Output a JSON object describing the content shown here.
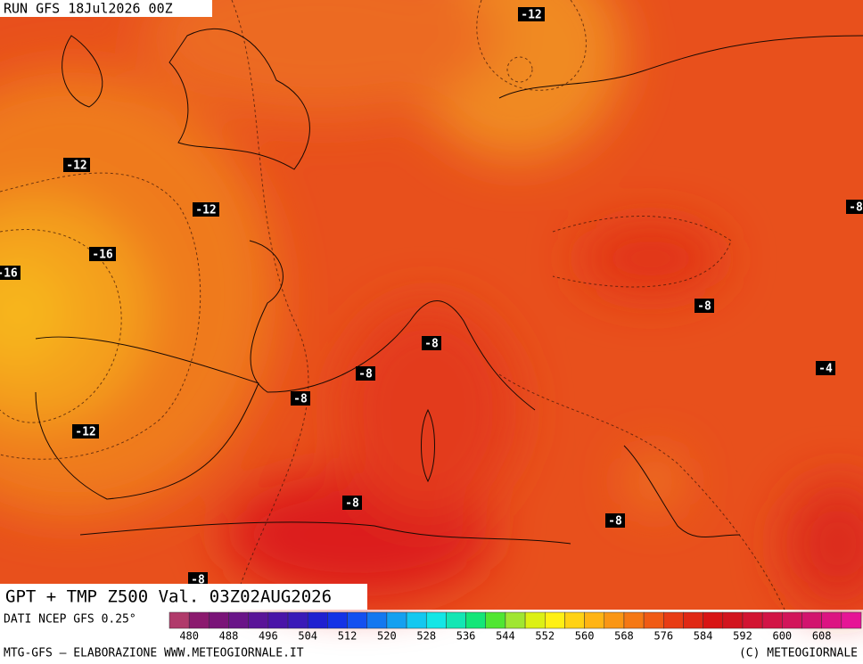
{
  "header": {
    "run": "RUN GFS 18Jul2026 00Z"
  },
  "title": "GPT + TMP Z500 Val. 03Z02AUG2026",
  "source": "DATI NCEP GFS 0.25°",
  "footer": {
    "left": "MTG-GFS — ELABORAZIONE WWW.METEOGIORNALE.IT",
    "right": "(C) METEOGIORNALE"
  },
  "legend": {
    "ticks": [
      480,
      488,
      496,
      504,
      512,
      520,
      528,
      536,
      544,
      552,
      560,
      568,
      576,
      584,
      592,
      600,
      608
    ],
    "colors": [
      "#b03a6a",
      "#8b1a6e",
      "#7a1478",
      "#6a1488",
      "#5a1498",
      "#4a14a8",
      "#3a1ab8",
      "#2020d0",
      "#1432e6",
      "#1450f0",
      "#1478f0",
      "#14a0f0",
      "#14c8f0",
      "#14e6e6",
      "#14e6b4",
      "#14e678",
      "#50e632",
      "#a0e632",
      "#dcf014",
      "#fff014",
      "#ffd214",
      "#ffb414",
      "#fa9614",
      "#f57814",
      "#f05a14",
      "#e83c14",
      "#e02814",
      "#d81414",
      "#d2141e",
      "#d21432",
      "#d21446",
      "#d2145a",
      "#d2146e",
      "#dc1482",
      "#e61496"
    ]
  },
  "contour_labels": [
    "-12",
    "-12",
    "-12",
    "-16",
    "-16",
    "-8",
    "-8",
    "-8",
    "-8",
    "-4",
    "-12",
    "-8",
    "-8",
    "-8",
    "-8"
  ]
}
